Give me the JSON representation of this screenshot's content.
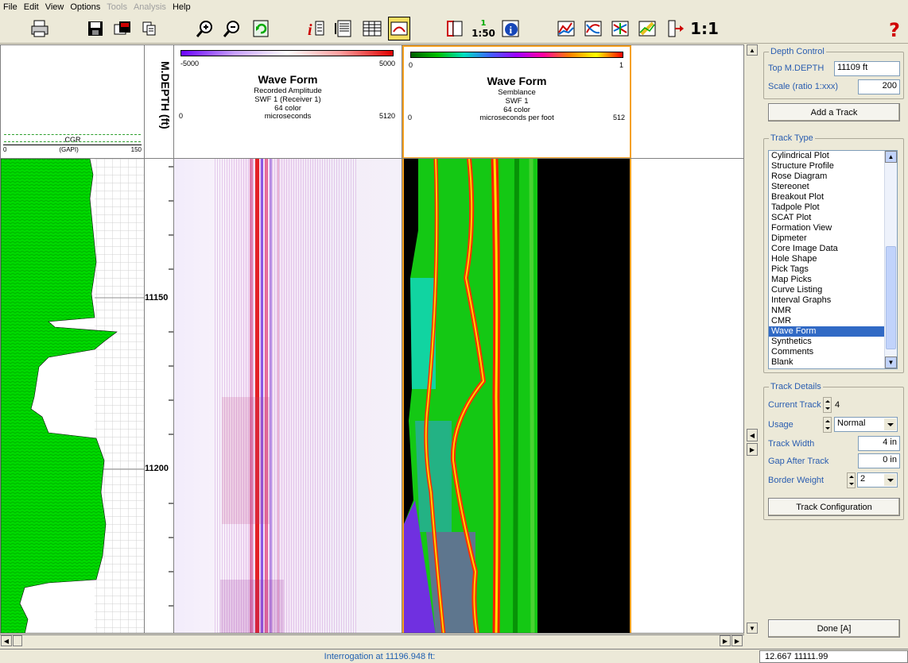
{
  "menu": [
    {
      "label": "File",
      "enabled": true
    },
    {
      "label": "Edit",
      "enabled": true
    },
    {
      "label": "View",
      "enabled": true
    },
    {
      "label": "Options",
      "enabled": true
    },
    {
      "label": "Tools",
      "enabled": false
    },
    {
      "label": "Analysis",
      "enabled": false
    },
    {
      "label": "Help",
      "enabled": true
    }
  ],
  "toolbar": {
    "icons": [
      "print-icon",
      "save-icon",
      "open-icon",
      "copy-icon",
      "zoom-in-icon",
      "zoom-out-icon",
      "refresh-icon",
      "interrogate-icon",
      "report-icon",
      "listing-icon",
      "gauge-icon",
      "track-icon",
      "scale-icon",
      "info-icon",
      "chart-icon",
      "crossplot-icon",
      "plot-icon",
      "edit-icon",
      "depth-shift-icon",
      "help-icon"
    ],
    "ratio_top": "1",
    "ratio_bottom": "1:50",
    "one_to_one": "1:1"
  },
  "log": {
    "cgr_track": {
      "name": "CGR",
      "unit": "(GAPI)",
      "min": "0",
      "max": "150",
      "fill_color": "#00d800"
    },
    "depth_track": {
      "title": "M.DEPTH (ft)",
      "labels": [
        "11150",
        "11200"
      ]
    },
    "waveform_track": {
      "colorbar_min": "-5000",
      "colorbar_max": "5000",
      "title": "Wave Form",
      "line1": "Recorded Amplitude",
      "line2": "SWF 1 (Receiver 1)",
      "line3": "64 color",
      "line4": "microseconds",
      "range_min": "0",
      "range_max": "5120"
    },
    "semblance_track": {
      "colorbar_min": "0",
      "colorbar_max": "1",
      "title": "Wave Form",
      "line1": "Semblance",
      "line2": "SWF 1",
      "line3": "64 color",
      "line4": "microseconds per foot",
      "range_min": "0",
      "range_max": "512",
      "border_color": "#f5a020"
    }
  },
  "status": {
    "message": "Interrogation at 11196.948 ft:",
    "value": "12.667  11111.99"
  },
  "panel": {
    "depth_control": {
      "legend": "Depth Control",
      "top_label": "Top M.DEPTH",
      "top_value": "11109 ft",
      "scale_label": "Scale (ratio 1:xxx)",
      "scale_value": "200"
    },
    "add_track_label": "Add a Track",
    "track_type": {
      "legend": "Track Type",
      "items": [
        "Cylindrical Plot",
        "Structure Profile",
        "Rose Diagram",
        "Stereonet",
        "Breakout Plot",
        "Tadpole Plot",
        "SCAT Plot",
        "Formation View",
        "Dipmeter",
        "Core Image Data",
        "Hole Shape",
        "Pick Tags",
        "Map Picks",
        "Curve Listing",
        "Interval Graphs",
        "NMR",
        "CMR",
        "Wave Form",
        "Synthetics",
        "Comments",
        "Blank"
      ],
      "selected": "Wave Form"
    },
    "track_details": {
      "legend": "Track Details",
      "current_track_label": "Current Track",
      "current_track_value": "4",
      "usage_label": "Usage",
      "usage_value": "Normal",
      "width_label": "Track Width",
      "width_value": "4 in",
      "gap_label": "Gap After Track",
      "gap_value": "0 in",
      "border_label": "Border Weight",
      "border_value": "2",
      "config_label": "Track Configuration"
    },
    "done_label": "Done [A]"
  }
}
